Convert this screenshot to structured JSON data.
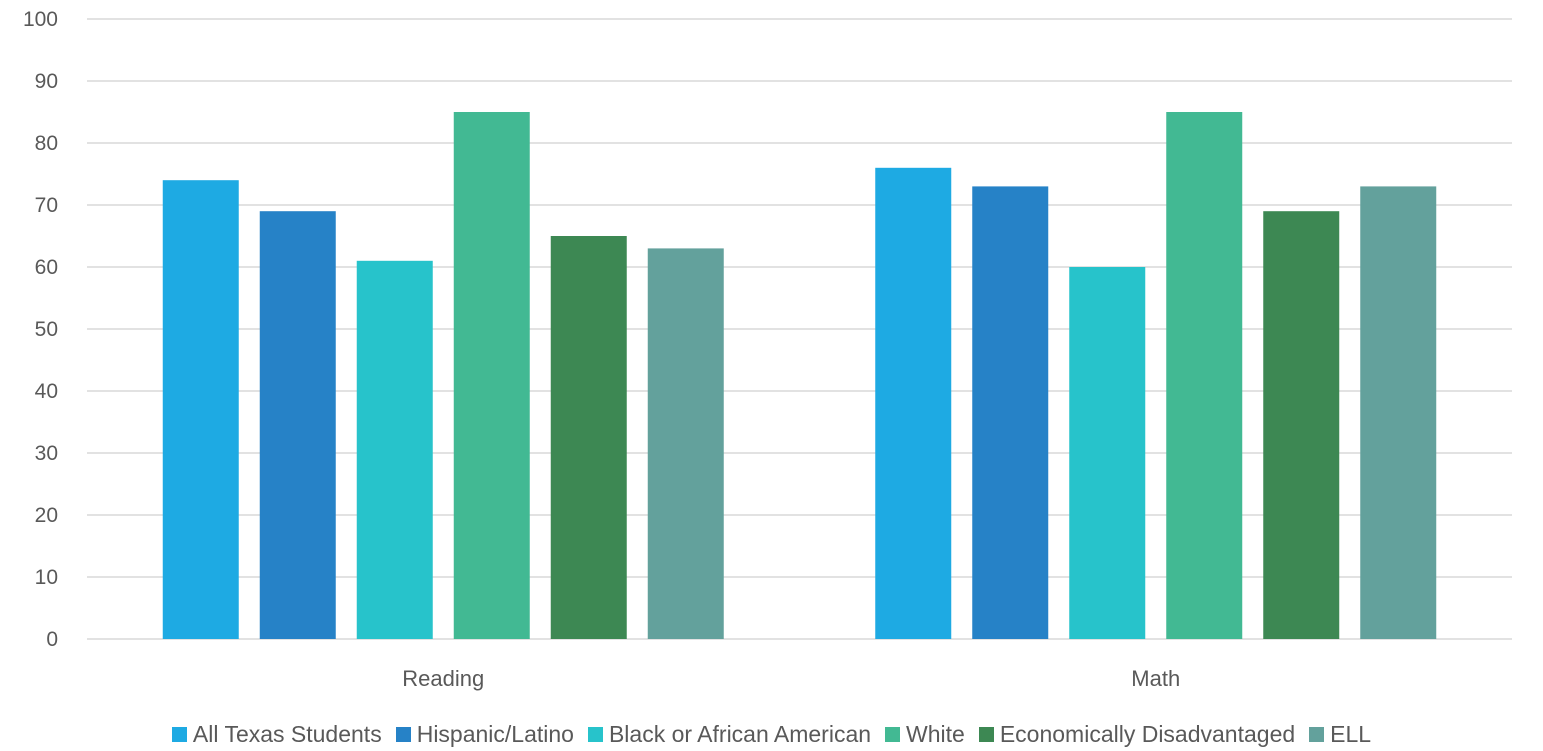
{
  "chart_data": {
    "type": "bar",
    "categories": [
      "Reading",
      "Math"
    ],
    "series": [
      {
        "name": "All Texas Students",
        "values": [
          74,
          76
        ],
        "color": "#1eaae3"
      },
      {
        "name": "Hispanic/Latino",
        "values": [
          69,
          73
        ],
        "color": "#2682c7"
      },
      {
        "name": "Black or African American",
        "values": [
          61,
          60
        ],
        "color": "#27c3cb"
      },
      {
        "name": "White",
        "values": [
          85,
          85
        ],
        "color": "#42b993"
      },
      {
        "name": "Economically Disadvantaged",
        "values": [
          65,
          69
        ],
        "color": "#3d8853"
      },
      {
        "name": "ELL",
        "values": [
          63,
          73
        ],
        "color": "#63a19c"
      }
    ],
    "ylim": [
      0,
      100
    ],
    "yticks": [
      "0",
      "10",
      "20",
      "30",
      "40",
      "50",
      "60",
      "70",
      "80",
      "90",
      "100"
    ],
    "grid": true,
    "legend_position": "bottom",
    "xlabel": "",
    "ylabel": "",
    "title": ""
  }
}
